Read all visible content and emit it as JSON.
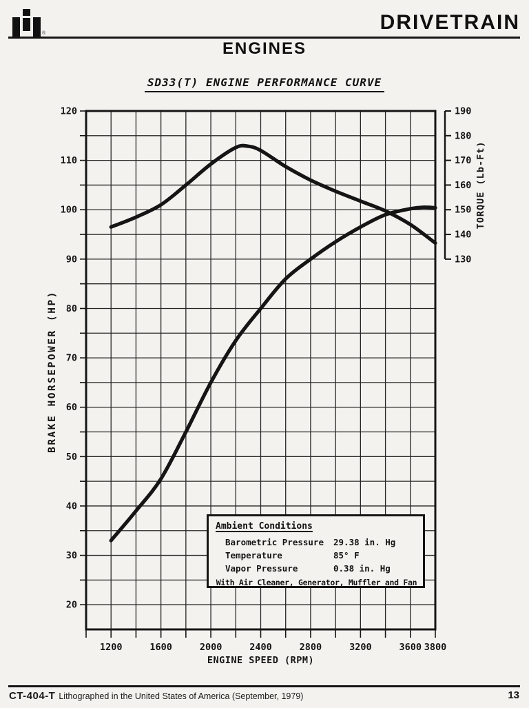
{
  "page": {
    "brand_logo": "IH",
    "reg_mark": "®",
    "header_title": "DRIVETRAIN",
    "section_title": "ENGINES",
    "chart_title": "SD33(T) ENGINE PERFORMANCE CURVE",
    "footer": {
      "doc_code": "CT-404-T",
      "litho_note": "Lithographed in the United States of America (September, 1979)",
      "page_number": "13"
    }
  },
  "ambient_box": {
    "title": "Ambient Conditions",
    "rows": [
      {
        "label": "Barometric Pressure",
        "value": "29.38 in. Hg"
      },
      {
        "label": "Temperature",
        "value": "85° F"
      },
      {
        "label": "Vapor Pressure",
        "value": "0.38 in. Hg"
      }
    ],
    "footnote": "With Air Cleaner, Generator, Muffler and Fan"
  },
  "chart_data": {
    "type": "line",
    "title": "SD33(T) ENGINE PERFORMANCE CURVE",
    "xlabel": "ENGINE SPEED (RPM)",
    "ylabel_left": "BRAKE HORSEPOWER (HP)",
    "ylabel_right": "TORQUE (Lb-Ft)",
    "x_range": [
      1000,
      3800
    ],
    "x_gridline_step": 200,
    "x_tick_labels": [
      1200,
      1600,
      2000,
      2400,
      2800,
      3200,
      3600,
      3800
    ],
    "y_left_range": [
      15,
      120
    ],
    "y_left_gridline_step": 5,
    "y_left_tick_labels": [
      20,
      30,
      40,
      50,
      60,
      70,
      80,
      90,
      100,
      110,
      120
    ],
    "y_right_range": [
      130,
      190
    ],
    "y_right_tick_step": 10,
    "y_right_tick_labels": [
      130,
      140,
      150,
      160,
      170,
      180,
      190
    ],
    "y_right_anchor_hp": [
      90,
      120
    ],
    "grid": true,
    "legend": "none",
    "ink_color": "#151515",
    "paper_color": "#f3f2ee",
    "series": [
      {
        "name": "brake-horsepower",
        "axis": "left",
        "x": [
          1200,
          1400,
          1600,
          1800,
          2000,
          2200,
          2400,
          2600,
          2800,
          3000,
          3200,
          3400,
          3600,
          3700,
          3800
        ],
        "values": [
          33,
          39,
          45.5,
          55,
          65,
          73.5,
          80,
          86,
          90,
          93.5,
          96.5,
          99,
          100.2,
          100.5,
          100.4
        ]
      },
      {
        "name": "torque",
        "axis": "right",
        "x": [
          1200,
          1400,
          1600,
          1800,
          2000,
          2200,
          2300,
          2400,
          2600,
          2800,
          3000,
          3200,
          3400,
          3600,
          3800
        ],
        "values": [
          143,
          147,
          152,
          160,
          168.5,
          175.2,
          175.7,
          174,
          167.5,
          162,
          157.5,
          153.5,
          149.5,
          144,
          136.5
        ]
      }
    ]
  }
}
